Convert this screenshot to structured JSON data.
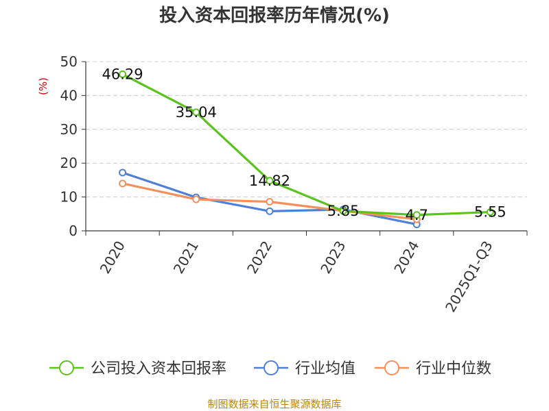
{
  "chart_data": {
    "type": "line",
    "title": "投入资本回报率历年情况(%)",
    "ylabel": "(%)",
    "xlabel": "",
    "categories": [
      "2020",
      "2021",
      "2022",
      "2023",
      "2024",
      "2025Q1-Q3"
    ],
    "ylim": [
      0,
      50
    ],
    "yticks": [
      0,
      10,
      20,
      30,
      40,
      50
    ],
    "grid": true,
    "legend_position": "bottom",
    "series": [
      {
        "name": "公司投入资本回报率",
        "color": "#5cc21e",
        "values": [
          46.29,
          35.04,
          14.82,
          5.85,
          4.7,
          5.55
        ],
        "labels": [
          "46.29",
          "35.04",
          "14.82",
          "5.85",
          "4.7",
          "5.55"
        ]
      },
      {
        "name": "行业均值",
        "color": "#4f7fd6",
        "values": [
          17.2,
          9.9,
          5.8,
          6.3,
          1.9,
          null
        ]
      },
      {
        "name": "行业中位数",
        "color": "#f5905a",
        "values": [
          14.0,
          9.3,
          8.6,
          5.9,
          3.4,
          null
        ]
      }
    ]
  },
  "source": "制图数据来自恒生聚源数据库"
}
